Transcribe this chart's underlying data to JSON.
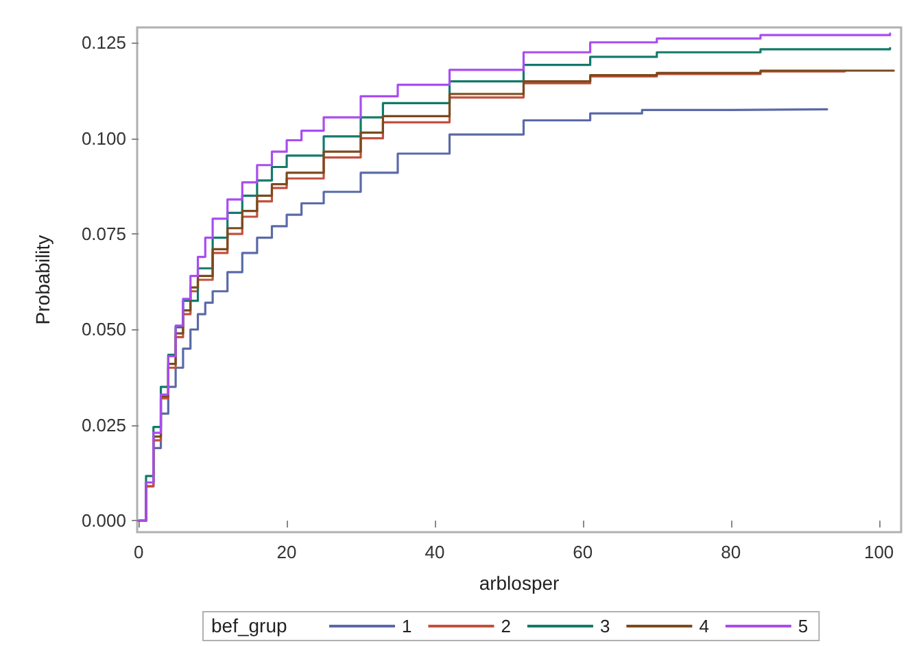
{
  "chart_data": {
    "type": "step",
    "xlabel": "arblosper",
    "ylabel": "Probability",
    "legend_title": "bef_grup",
    "legend": "bottom",
    "grid": false,
    "marker": "none",
    "line_style": "solid",
    "xlim": [
      -0.2,
      103
    ],
    "xticks": [
      0,
      20,
      40,
      60,
      80,
      100
    ],
    "ylim": [
      -0.003,
      0.129
    ],
    "yticks": [
      {
        "value": 0,
        "label": "0.000"
      },
      {
        "value": 0.025,
        "label": "0.025"
      },
      {
        "value": 0.05,
        "label": "0.050"
      },
      {
        "value": 0.075,
        "label": "0.075"
      },
      {
        "value": 0.1,
        "label": "0.100"
      },
      {
        "value": 0.125,
        "label": "0.125"
      }
    ],
    "series": [
      {
        "name": "1",
        "color": "#5a6aa8",
        "x": [
          0,
          1,
          2,
          3,
          4,
          5,
          6,
          7,
          8,
          9,
          10,
          12,
          14,
          16,
          18,
          20,
          22,
          25,
          30,
          35,
          42,
          52,
          61,
          68,
          80,
          93
        ],
        "values": [
          0,
          0.009,
          0.019,
          0.028,
          0.035,
          0.04,
          0.045,
          0.05,
          0.054,
          0.057,
          0.06,
          0.065,
          0.07,
          0.074,
          0.077,
          0.08,
          0.083,
          0.086,
          0.091,
          0.096,
          0.101,
          0.1047,
          0.1065,
          0.1074,
          0.1076,
          0.1078
        ]
      },
      {
        "name": "2",
        "color": "#c2503c",
        "x": [
          0,
          1,
          2,
          3,
          4,
          5,
          6,
          7,
          8,
          10,
          12,
          14,
          16,
          18,
          20,
          25,
          30,
          33,
          42,
          52,
          61,
          70,
          84,
          95.4
        ],
        "values": [
          0,
          0.009,
          0.021,
          0.032,
          0.04,
          0.048,
          0.054,
          0.06,
          0.063,
          0.07,
          0.075,
          0.0795,
          0.0835,
          0.087,
          0.0895,
          0.095,
          0.1,
          0.1042,
          0.1107,
          0.1144,
          0.1162,
          0.1168,
          0.1175,
          0.1177
        ]
      },
      {
        "name": "3",
        "color": "#137a6a",
        "x": [
          0,
          1,
          2,
          3,
          4,
          5,
          6,
          8,
          10,
          12,
          14,
          16,
          18,
          20,
          25,
          30,
          33,
          42,
          52,
          61,
          70,
          84,
          101.5
        ],
        "values": [
          0,
          0.0117,
          0.0245,
          0.035,
          0.0434,
          0.0506,
          0.0575,
          0.066,
          0.074,
          0.0805,
          0.085,
          0.089,
          0.0925,
          0.0955,
          0.1005,
          0.1055,
          0.1092,
          0.1149,
          0.1192,
          0.1213,
          0.1225,
          0.1233,
          0.1236
        ]
      },
      {
        "name": "4",
        "color": "#7a4a1e",
        "x": [
          0,
          1,
          2,
          3,
          4,
          5,
          6,
          7,
          8,
          10,
          12,
          14,
          16,
          18,
          20,
          25,
          30,
          33,
          42,
          52,
          61,
          70,
          84,
          102
        ],
        "values": [
          0,
          0.01,
          0.022,
          0.0325,
          0.041,
          0.049,
          0.055,
          0.061,
          0.064,
          0.071,
          0.0765,
          0.081,
          0.085,
          0.088,
          0.091,
          0.0965,
          0.1015,
          0.1058,
          0.1116,
          0.1149,
          0.1165,
          0.1171,
          0.1177,
          0.1179
        ]
      },
      {
        "name": "5",
        "color": "#a94cf0",
        "x": [
          0,
          1,
          2,
          3,
          4,
          5,
          6,
          7,
          8,
          9,
          10,
          12,
          14,
          16,
          18,
          20,
          22,
          25,
          30,
          35,
          42,
          52,
          61,
          70,
          84,
          101.5
        ],
        "values": [
          0,
          0.01,
          0.023,
          0.033,
          0.043,
          0.051,
          0.058,
          0.064,
          0.069,
          0.074,
          0.079,
          0.084,
          0.0885,
          0.093,
          0.0965,
          0.0995,
          0.102,
          0.1055,
          0.111,
          0.114,
          0.1179,
          0.1225,
          0.1251,
          0.1261,
          0.127,
          0.1274
        ]
      }
    ]
  }
}
